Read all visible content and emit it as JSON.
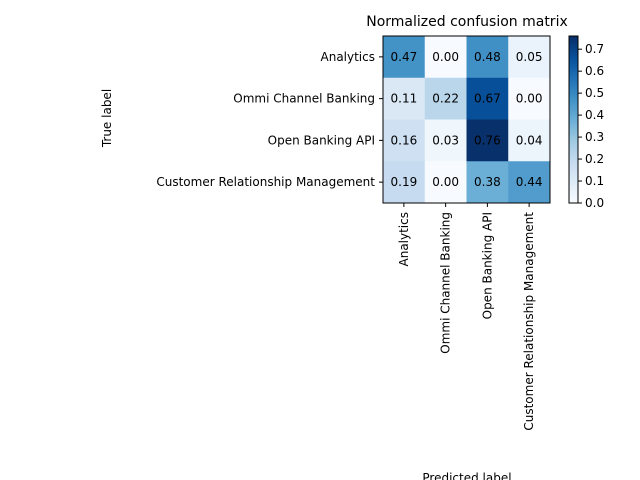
{
  "chart_data": {
    "type": "heatmap",
    "title": "Normalized confusion matrix",
    "xlabel": "Predicted label",
    "ylabel": "True label",
    "row_labels": [
      "Analytics",
      "Ommi Channel Banking",
      "Open Banking API",
      "Customer Relationship Management"
    ],
    "col_labels": [
      "Analytics",
      "Ommi Channel Banking",
      "Open Banking API",
      "Customer Relationship Management"
    ],
    "values": [
      [
        0.47,
        0.0,
        0.48,
        0.05
      ],
      [
        0.11,
        0.22,
        0.67,
        0.0
      ],
      [
        0.16,
        0.03,
        0.76,
        0.04
      ],
      [
        0.19,
        0.0,
        0.38,
        0.44
      ]
    ],
    "colormap": "Blues",
    "colorbar": {
      "range": [
        0.0,
        0.76
      ],
      "ticks": [
        "0.0",
        "0.1",
        "0.2",
        "0.3",
        "0.4",
        "0.5",
        "0.6",
        "0.7"
      ]
    }
  }
}
